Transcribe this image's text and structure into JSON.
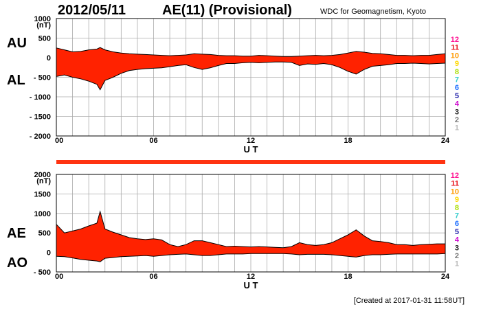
{
  "header": {
    "date": "2012/05/11",
    "title": "AE(11) (Provisional)",
    "source": "WDC for Geomagnetism, Kyoto"
  },
  "footer": {
    "created": "[Created at 2017-01-31 11:58UT]"
  },
  "legend": {
    "items": [
      {
        "label": "12",
        "color": "#ff1493"
      },
      {
        "label": "11",
        "color": "#e8141c"
      },
      {
        "label": "10",
        "color": "#ff9900"
      },
      {
        "label": "9",
        "color": "#ffd700"
      },
      {
        "label": "8",
        "color": "#aadd00"
      },
      {
        "label": "7",
        "color": "#33cccc"
      },
      {
        "label": "6",
        "color": "#1e6fff"
      },
      {
        "label": "5",
        "color": "#2222aa"
      },
      {
        "label": "4",
        "color": "#cc00cc"
      },
      {
        "label": "3",
        "color": "#222222"
      },
      {
        "label": "2",
        "color": "#777777"
      },
      {
        "label": "1",
        "color": "#bbbbbb"
      }
    ]
  },
  "colors": {
    "fill": "#ff2200",
    "outline": "#000000",
    "grid": "#aaaaaa",
    "band": "#ff3311"
  },
  "chart_data": [
    {
      "type": "area",
      "name": "AU/AL panel",
      "side_labels": [
        "AU",
        "AL"
      ],
      "ylabel": "(nT)",
      "xlabel": "U T",
      "ylim": [
        -2000,
        1000
      ],
      "yticks": [
        "1000",
        "500",
        "0",
        "- 500",
        "- 1000",
        "- 1500",
        "- 2000"
      ],
      "xticks": [
        "00",
        "06",
        "12",
        "18",
        "24"
      ],
      "x": [
        0,
        0.5,
        1,
        1.5,
        2,
        2.5,
        2.7,
        3,
        3.5,
        4,
        4.5,
        5,
        5.5,
        6,
        6.5,
        7,
        7.5,
        8,
        8.5,
        9,
        9.5,
        10,
        10.5,
        11,
        11.5,
        12,
        12.5,
        13,
        13.5,
        14,
        14.5,
        15,
        15.5,
        16,
        16.5,
        17,
        17.5,
        18,
        18.5,
        19,
        19.5,
        20,
        20.5,
        21,
        21.5,
        22,
        22.5,
        23,
        23.5,
        24
      ],
      "series": [
        {
          "name": "AU",
          "values": [
            250,
            200,
            150,
            160,
            200,
            220,
            260,
            200,
            150,
            120,
            100,
            90,
            80,
            70,
            60,
            50,
            60,
            70,
            100,
            90,
            80,
            60,
            50,
            50,
            40,
            40,
            60,
            50,
            40,
            30,
            30,
            40,
            50,
            60,
            50,
            60,
            80,
            120,
            160,
            140,
            110,
            100,
            80,
            60,
            60,
            50,
            60,
            60,
            80,
            100
          ]
        },
        {
          "name": "AL",
          "values": [
            -480,
            -440,
            -500,
            -540,
            -600,
            -680,
            -820,
            -580,
            -500,
            -400,
            -330,
            -300,
            -280,
            -270,
            -260,
            -230,
            -200,
            -180,
            -250,
            -300,
            -260,
            -200,
            -150,
            -150,
            -130,
            -120,
            -130,
            -120,
            -110,
            -110,
            -120,
            -200,
            -160,
            -170,
            -150,
            -180,
            -250,
            -350,
            -420,
            -300,
            -220,
            -200,
            -180,
            -150,
            -150,
            -140,
            -150,
            -160,
            -150,
            -140
          ]
        }
      ]
    },
    {
      "type": "area",
      "name": "AE/AO panel",
      "side_labels": [
        "AE",
        "AO"
      ],
      "ylabel": "(nT)",
      "xlabel": "U T",
      "ylim": [
        -500,
        2000
      ],
      "yticks": [
        "2000",
        "1500",
        "1000",
        "500",
        "0",
        "- 500"
      ],
      "xticks": [
        "00",
        "06",
        "12",
        "18",
        "24"
      ],
      "x": [
        0,
        0.5,
        1,
        1.5,
        2,
        2.5,
        2.7,
        3,
        3.5,
        4,
        4.5,
        5,
        5.5,
        6,
        6.5,
        7,
        7.5,
        8,
        8.5,
        9,
        9.5,
        10,
        10.5,
        11,
        11.5,
        12,
        12.5,
        13,
        13.5,
        14,
        14.5,
        15,
        15.5,
        16,
        16.5,
        17,
        17.5,
        18,
        18.5,
        19,
        19.5,
        20,
        20.5,
        21,
        21.5,
        22,
        22.5,
        23,
        23.5,
        24
      ],
      "series": [
        {
          "name": "AE",
          "values": [
            720,
            500,
            550,
            600,
            680,
            750,
            1050,
            600,
            520,
            450,
            380,
            350,
            330,
            350,
            320,
            200,
            150,
            200,
            300,
            300,
            250,
            200,
            150,
            160,
            150,
            140,
            150,
            140,
            130,
            120,
            150,
            250,
            200,
            180,
            200,
            250,
            350,
            450,
            580,
            420,
            300,
            280,
            250,
            200,
            200,
            180,
            200,
            210,
            220,
            220
          ]
        },
        {
          "name": "AO",
          "values": [
            -100,
            -110,
            -140,
            -180,
            -200,
            -220,
            -240,
            -150,
            -130,
            -110,
            -100,
            -90,
            -80,
            -100,
            -80,
            -60,
            -50,
            -40,
            -60,
            -80,
            -80,
            -60,
            -40,
            -40,
            -40,
            -30,
            -30,
            -30,
            -30,
            -30,
            -40,
            -60,
            -50,
            -50,
            -50,
            -60,
            -80,
            -100,
            -120,
            -80,
            -60,
            -60,
            -50,
            -40,
            -40,
            -40,
            -40,
            -40,
            -40,
            -30
          ]
        }
      ]
    }
  ]
}
